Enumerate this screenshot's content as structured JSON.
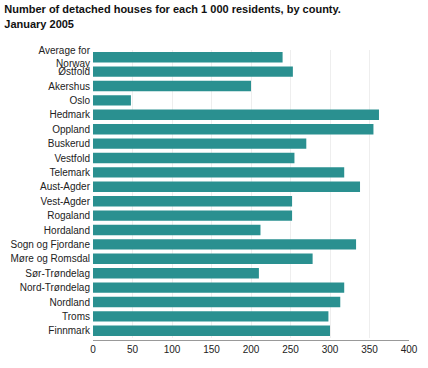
{
  "chart_data": {
    "type": "bar",
    "orientation": "horizontal",
    "title": "Number of detached houses for each 1 000 residents, by county.",
    "subtitle": "January 2005",
    "categories": [
      "Average for\nNorway",
      "Østfold",
      "Akershus",
      "Oslo",
      "Hedmark",
      "Oppland",
      "Buskerud",
      "Vestfold",
      "Telemark",
      "Aust-Agder",
      "Vest-Agder",
      "Rogaland",
      "Hordaland",
      "Sogn og Fjordane",
      "Møre og Romsdal",
      "Sør-Trøndelag",
      "Nord-Trøndelag",
      "Nordland",
      "Troms",
      "Finnmark"
    ],
    "values": [
      240,
      253,
      200,
      48,
      362,
      355,
      270,
      255,
      318,
      338,
      252,
      252,
      212,
      333,
      278,
      210,
      318,
      313,
      298,
      300
    ],
    "color": "#2a9090",
    "xlim": [
      0,
      400
    ],
    "xticks": [
      0,
      50,
      100,
      150,
      200,
      250,
      300,
      350,
      400
    ],
    "grid": true
  }
}
